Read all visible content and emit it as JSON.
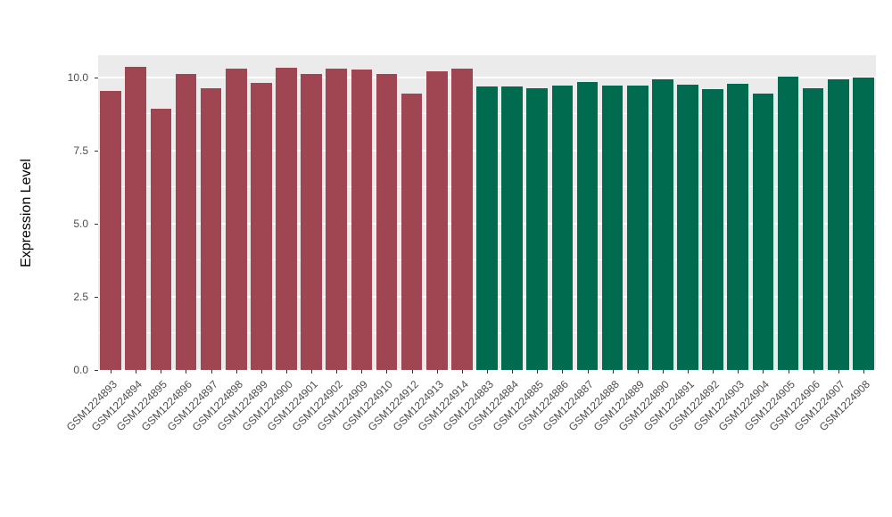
{
  "chart_data": {
    "type": "bar",
    "title": "",
    "xlabel": "",
    "ylabel": "Expression Level",
    "ylim": [
      0,
      10.76
    ],
    "yticks": [
      0,
      2.5,
      5,
      7.5,
      10
    ],
    "yticks_minor": [
      1.25,
      3.75,
      6.25,
      8.75
    ],
    "grid": true,
    "legend": "none",
    "panel_background": "#EBEBEB",
    "groups": [
      {
        "name": "maroon-group",
        "color": "#A04552",
        "categories": [
          "GSM1224893",
          "GSM1224894",
          "GSM1224895",
          "GSM1224896",
          "GSM1224897",
          "GSM1224898",
          "GSM1224899",
          "GSM1224900",
          "GSM1224901",
          "GSM1224902",
          "GSM1224909",
          "GSM1224910",
          "GSM1224912",
          "GSM1224913",
          "GSM1224914"
        ],
        "values": [
          9.55,
          10.36,
          8.94,
          10.12,
          9.64,
          10.3,
          9.82,
          10.33,
          10.12,
          10.3,
          10.27,
          10.12,
          9.45,
          10.21,
          10.3
        ]
      },
      {
        "name": "green-group",
        "color": "#006B4E",
        "categories": [
          "GSM1224883",
          "GSM1224884",
          "GSM1224885",
          "GSM1224886",
          "GSM1224887",
          "GSM1224888",
          "GSM1224889",
          "GSM1224890",
          "GSM1224891",
          "GSM1224892",
          "GSM1224903",
          "GSM1224904",
          "GSM1224905",
          "GSM1224906",
          "GSM1224907",
          "GSM1224908"
        ],
        "values": [
          9.7,
          9.7,
          9.64,
          9.73,
          9.85,
          9.73,
          9.73,
          9.94,
          9.76,
          9.61,
          9.79,
          9.45,
          10.03,
          9.64,
          9.94,
          10.0
        ]
      }
    ]
  }
}
